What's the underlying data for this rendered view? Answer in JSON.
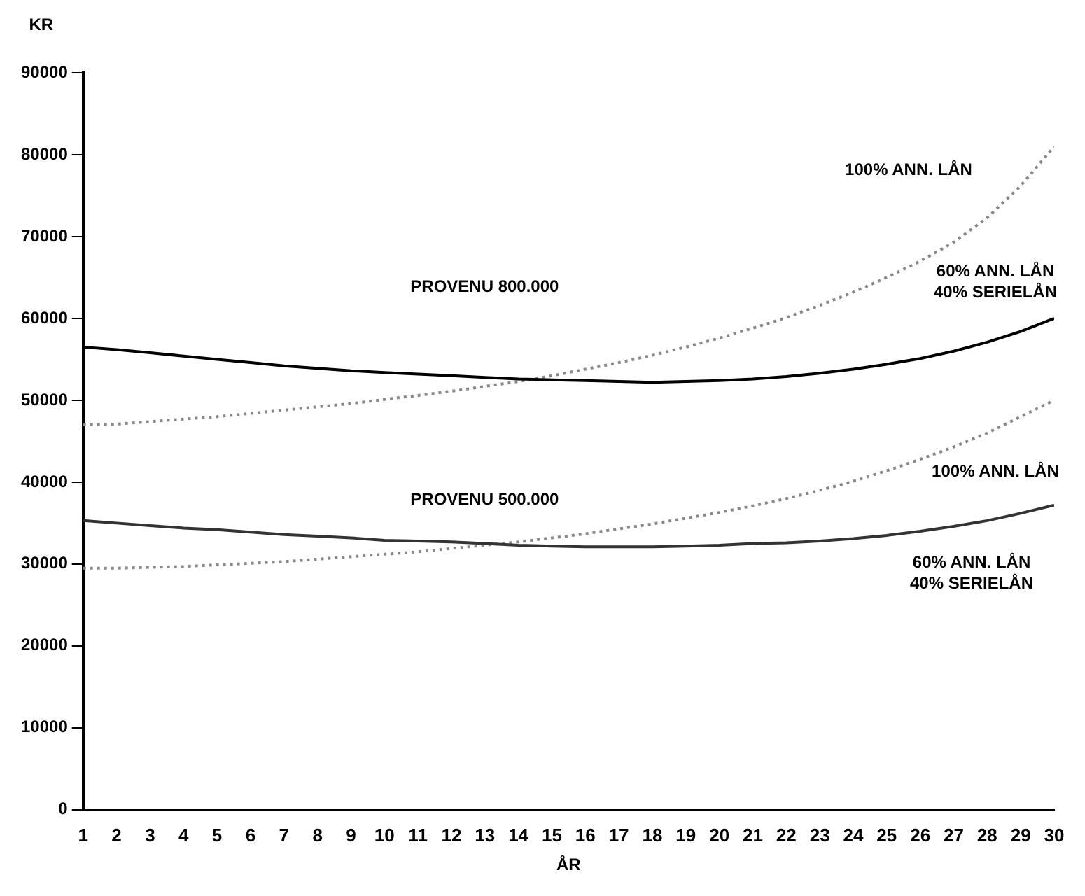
{
  "chart_data": {
    "type": "line",
    "xlabel": "ÅR",
    "ylabel": "KR",
    "x": [
      1,
      2,
      3,
      4,
      5,
      6,
      7,
      8,
      9,
      10,
      11,
      12,
      13,
      14,
      15,
      16,
      17,
      18,
      19,
      20,
      21,
      22,
      23,
      24,
      25,
      26,
      27,
      28,
      29,
      30
    ],
    "xlim": [
      1,
      30
    ],
    "xticks": [
      1,
      2,
      3,
      4,
      5,
      6,
      7,
      8,
      9,
      10,
      11,
      12,
      13,
      14,
      15,
      16,
      17,
      18,
      19,
      20,
      21,
      22,
      23,
      24,
      25,
      26,
      27,
      28,
      29,
      30
    ],
    "ylim": [
      0,
      90000
    ],
    "yticks": [
      0,
      10000,
      20000,
      30000,
      40000,
      50000,
      60000,
      70000,
      80000,
      90000
    ],
    "grid": false,
    "legend": false,
    "marker": "none",
    "series": [
      {
        "name": "60% ANN. LÅN\n40% SERIELÅN",
        "color": "#000000",
        "line_style": "solid",
        "values": [
          56500,
          56200,
          55800,
          55400,
          55000,
          54600,
          54200,
          53900,
          53600,
          53400,
          53200,
          53000,
          52800,
          52600,
          52500,
          52400,
          52300,
          52200,
          52300,
          52400,
          52600,
          52900,
          53300,
          53800,
          54400,
          55100,
          56000,
          57100,
          58400,
          60000
        ]
      },
      {
        "name": "100% ANN. LÅN",
        "color": "#888888",
        "line_style": "dotted",
        "values": [
          47000,
          47100,
          47400,
          47700,
          48000,
          48400,
          48800,
          49200,
          49600,
          50100,
          50600,
          51100,
          51700,
          52300,
          53000,
          53800,
          54600,
          55500,
          56500,
          57600,
          58800,
          60100,
          61600,
          63200,
          65000,
          67000,
          69300,
          72300,
          76200,
          81000
        ]
      },
      {
        "name": "60% ANN. LÅN\n40% SERIELÅN",
        "color": "#333333",
        "line_style": "solid",
        "values": [
          35300,
          35000,
          34700,
          34400,
          34200,
          33900,
          33600,
          33400,
          33200,
          32900,
          32800,
          32700,
          32500,
          32300,
          32200,
          32100,
          32100,
          32100,
          32200,
          32300,
          32500,
          32600,
          32800,
          33100,
          33500,
          34000,
          34600,
          35300,
          36200,
          37200
        ]
      },
      {
        "name": "100% ANN. LÅN",
        "color": "#888888",
        "line_style": "dotted",
        "values": [
          29500,
          29500,
          29600,
          29700,
          29900,
          30100,
          30300,
          30600,
          30900,
          31200,
          31500,
          31900,
          32300,
          32700,
          33200,
          33700,
          34300,
          34900,
          35600,
          36300,
          37100,
          38000,
          39000,
          40100,
          41400,
          42800,
          44300,
          46000,
          48000,
          50000
        ]
      }
    ],
    "annotations": [
      "PROVENU 800.000",
      "PROVENU 500.000"
    ]
  }
}
